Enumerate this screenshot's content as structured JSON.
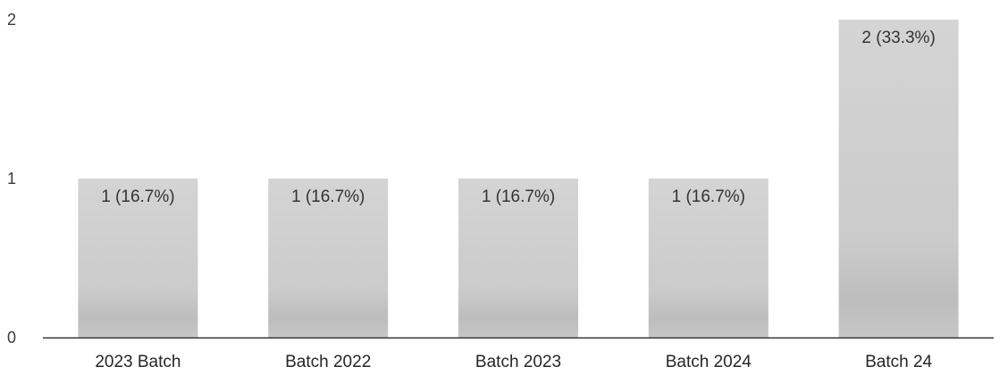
{
  "chart_data": {
    "type": "bar",
    "categories": [
      "2023 Batch",
      "Batch 2022",
      "Batch 2023",
      "Batch 2024",
      "Batch 24"
    ],
    "values": [
      1,
      1,
      1,
      1,
      2
    ],
    "data_labels": [
      "1 (16.7%)",
      "1 (16.7%)",
      "1 (16.7%)",
      "1 (16.7%)",
      "2 (33.3%)"
    ],
    "y_ticks": [
      0,
      1,
      2
    ],
    "ylim": [
      0,
      2
    ],
    "grid": false,
    "legend": "none",
    "bar_color": "#c9c9c9",
    "axis_color": "#333333"
  }
}
